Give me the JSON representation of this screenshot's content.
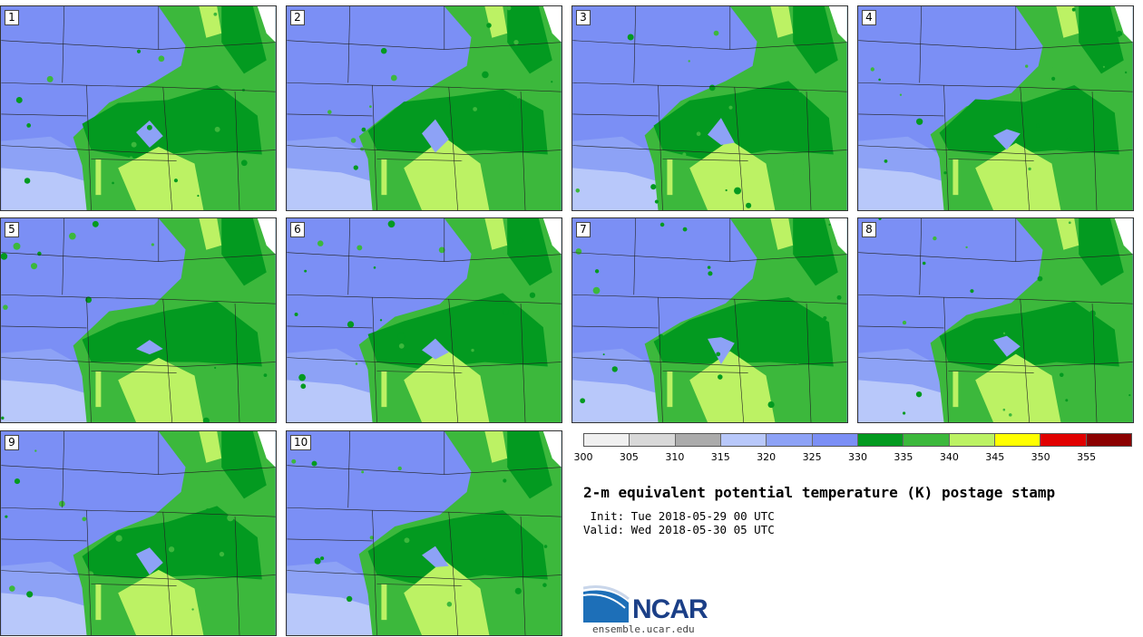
{
  "title": "2-m equivalent potential temperature (K) postage stamp",
  "init": " Init: Tue 2018-05-29 00 UTC",
  "valid": "Valid: Wed 2018-05-30 05 UTC",
  "logo_text": "NCAR",
  "site": "ensemble.ucar.edu",
  "panels": [
    {
      "label": "1"
    },
    {
      "label": "2"
    },
    {
      "label": "3"
    },
    {
      "label": "4"
    },
    {
      "label": "5"
    },
    {
      "label": "6"
    },
    {
      "label": "7"
    },
    {
      "label": "8"
    },
    {
      "label": "9"
    },
    {
      "label": "10"
    }
  ],
  "colorbar": {
    "colors": [
      "#f0f0f0",
      "#d8d8d8",
      "#ababab",
      "#b8c8fa",
      "#8da2f6",
      "#7b8ff5",
      "#039a20",
      "#3cb83c",
      "#bcf264",
      "#ffff00",
      "#e10000",
      "#8b0000"
    ],
    "ticks": [
      "300",
      "305",
      "310",
      "315",
      "320",
      "325",
      "330",
      "335",
      "340",
      "345",
      "350",
      "355"
    ]
  },
  "map_colors": {
    "cool_light": "#b8c8fa",
    "cool_mid": "#8da2f6",
    "cool": "#7b8ff5",
    "green_dark": "#039a20",
    "green": "#3cb83c",
    "green_light": "#bcf264"
  }
}
